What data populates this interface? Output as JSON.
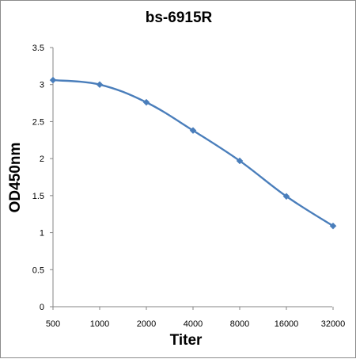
{
  "chart_data": {
    "type": "line",
    "title": "bs-6915R",
    "xlabel": "Titer",
    "ylabel": "OD450nm",
    "categories": [
      "500",
      "1000",
      "2000",
      "4000",
      "8000",
      "16000",
      "32000"
    ],
    "series": [
      {
        "values": [
          3.06,
          3.0,
          2.76,
          2.38,
          1.97,
          1.49,
          1.09
        ]
      }
    ],
    "yticks": [
      "0",
      "0.5",
      "1",
      "1.5",
      "2",
      "2.5",
      "3",
      "3.5"
    ],
    "ylim": [
      0,
      3.5
    ],
    "grid": false,
    "legend": "none",
    "line_color": "#4a7ebb",
    "marker": "diamond"
  }
}
